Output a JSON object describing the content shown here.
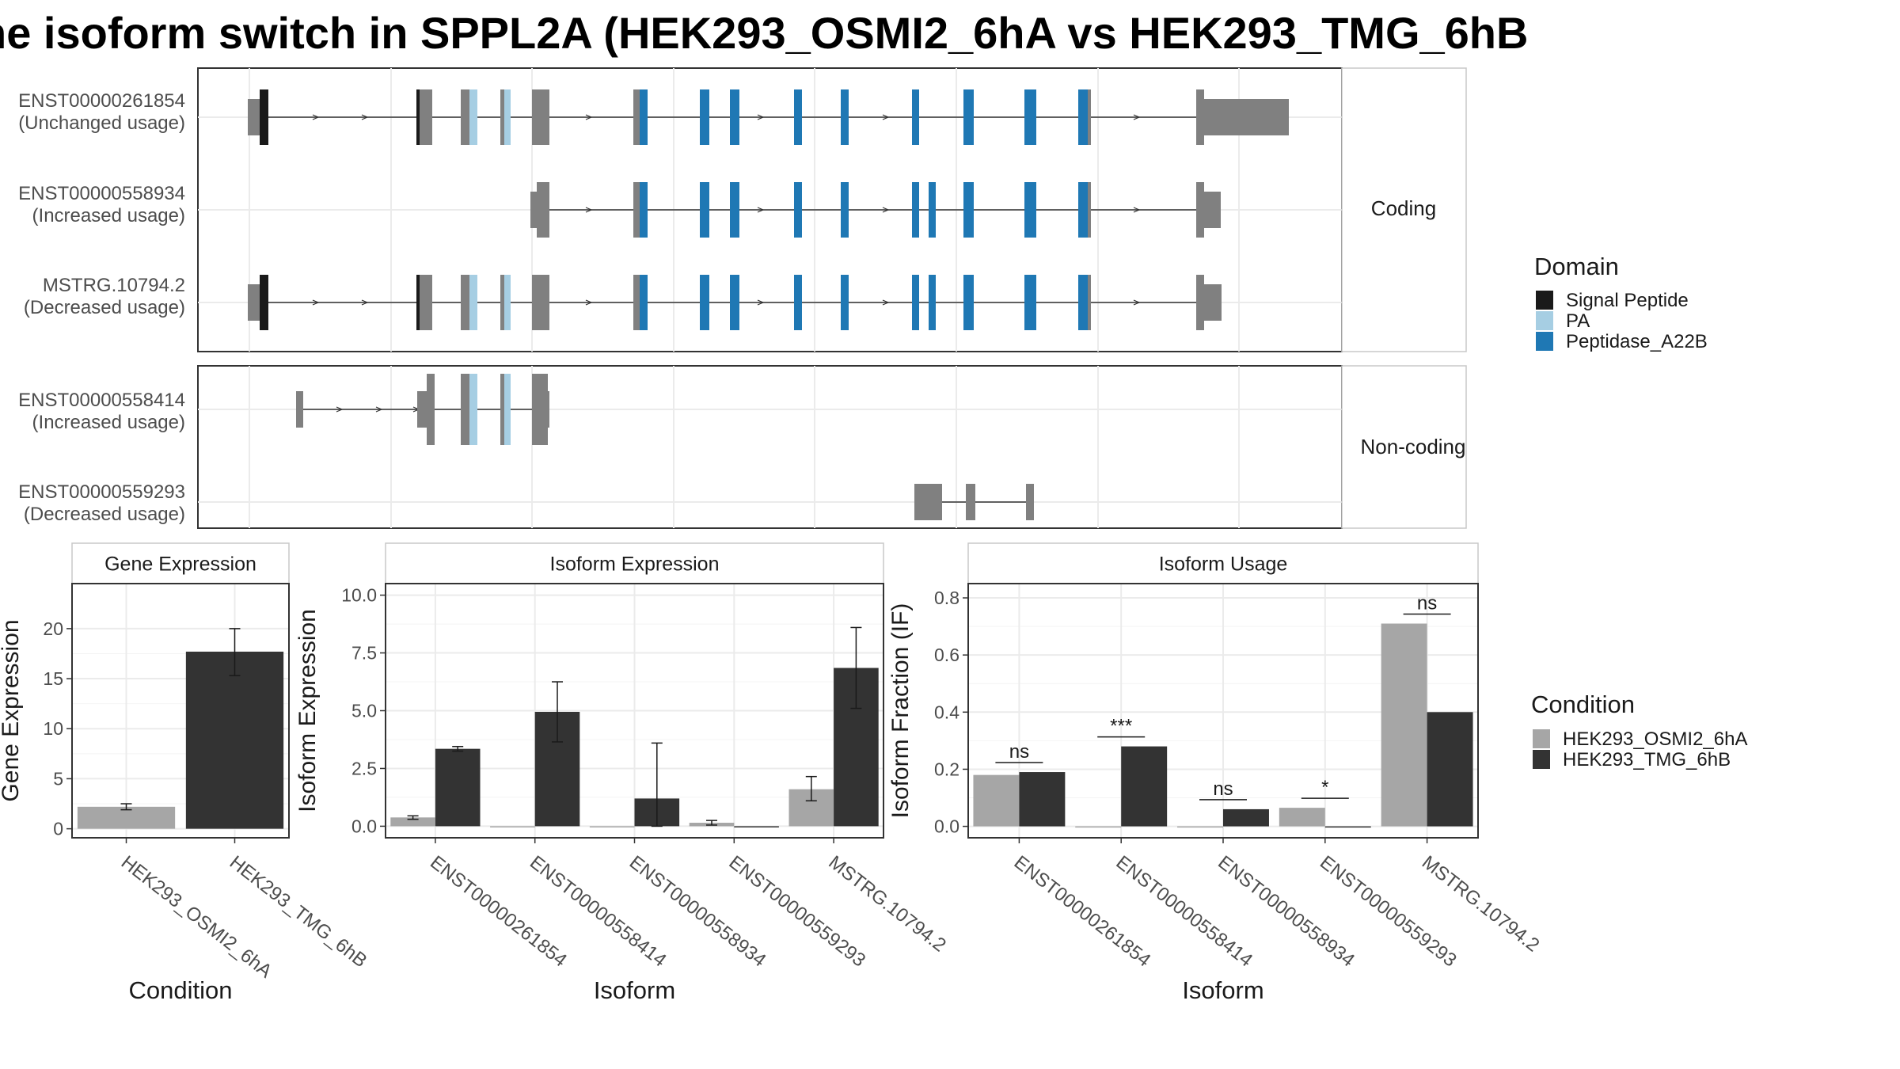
{
  "title": "ne isoform switch in SPPL2A (HEK293_OSMI2_6hA vs HEK293_TMG_6hB",
  "structure": {
    "panels": [
      {
        "label": "Coding",
        "isoforms": [
          {
            "id": "ENST00000261854",
            "usage": "(Unchanged usage)"
          },
          {
            "id": "ENST00000558934",
            "usage": "(Increased usage)"
          },
          {
            "id": "MSTRG.10794.2",
            "usage": "(Decreased usage)"
          }
        ]
      },
      {
        "label": "Non-coding",
        "isoforms": [
          {
            "id": "ENST00000558414",
            "usage": "(Increased usage)"
          },
          {
            "id": "ENST00000559293",
            "usage": "(Decreased usage)"
          }
        ]
      }
    ],
    "domain_legend": {
      "title": "Domain",
      "items": [
        {
          "label": "Signal Peptide",
          "color": "#1a1a1a"
        },
        {
          "label": "PA",
          "color": "#a6cee3"
        },
        {
          "label": "Peptidase_A22B",
          "color": "#1f78b4"
        }
      ]
    }
  },
  "condition_legend": {
    "title": "Condition",
    "items": [
      {
        "label": "HEK293_OSMI2_6hA",
        "color": "#a6a6a6"
      },
      {
        "label": "HEK293_TMG_6hB",
        "color": "#333333"
      }
    ]
  },
  "chart_data": [
    {
      "type": "bar",
      "title": "Gene Expression",
      "xlabel": "Condition",
      "ylabel": "Gene Expression",
      "categories": [
        "HEK293_OSMI2_6hA",
        "HEK293_TMG_6hB"
      ],
      "values": [
        2.2,
        17.7
      ],
      "errors": [
        [
          1.9,
          2.5
        ],
        [
          15.3,
          20.0
        ]
      ],
      "ylim": [
        -0.9,
        24.5
      ],
      "yticks": [
        0,
        5,
        10,
        15,
        20
      ],
      "grid": true
    },
    {
      "type": "bar",
      "title": "Isoform Expression",
      "xlabel": "Isoform",
      "ylabel": "Isoform Expression",
      "categories": [
        "ENST00000261854",
        "ENST00000558414",
        "ENST00000558934",
        "ENST00000559293",
        "MSTRG.10794.2"
      ],
      "series": [
        {
          "name": "HEK293_OSMI2_6hA",
          "values": [
            0.38,
            0.0,
            0.0,
            0.15,
            1.6
          ],
          "errors": [
            [
              0.3,
              0.45
            ],
            [
              0,
              0
            ],
            [
              0,
              0
            ],
            [
              0.05,
              0.25
            ],
            [
              1.1,
              2.15
            ]
          ]
        },
        {
          "name": "HEK293_TMG_6hB",
          "values": [
            3.35,
            4.95,
            1.2,
            0.0,
            6.85
          ],
          "errors": [
            [
              3.25,
              3.45
            ],
            [
              3.65,
              6.25
            ],
            [
              0.0,
              3.6
            ],
            [
              0,
              0
            ],
            [
              5.1,
              8.6
            ]
          ]
        }
      ],
      "ylim": [
        -0.5,
        10.5
      ],
      "yticks": [
        "0.0",
        "2.5",
        "5.0",
        "7.5",
        "10.0"
      ],
      "grid": true
    },
    {
      "type": "bar",
      "title": "Isoform Usage",
      "xlabel": "Isoform",
      "ylabel": "Isoform Fraction (IF)",
      "categories": [
        "ENST00000261854",
        "ENST00000558414",
        "ENST00000558934",
        "ENST00000559293",
        "MSTRG.10794.2"
      ],
      "series": [
        {
          "name": "HEK293_OSMI2_6hA",
          "values": [
            0.18,
            0.0,
            0.0,
            0.065,
            0.71
          ]
        },
        {
          "name": "HEK293_TMG_6hB",
          "values": [
            0.19,
            0.28,
            0.06,
            0.0,
            0.4
          ]
        }
      ],
      "significance": [
        "ns",
        "***",
        "ns",
        "*",
        "ns"
      ],
      "ylim": [
        -0.04,
        0.85
      ],
      "yticks": [
        "0.0",
        "0.2",
        "0.4",
        "0.6",
        "0.8"
      ],
      "grid": true
    }
  ]
}
